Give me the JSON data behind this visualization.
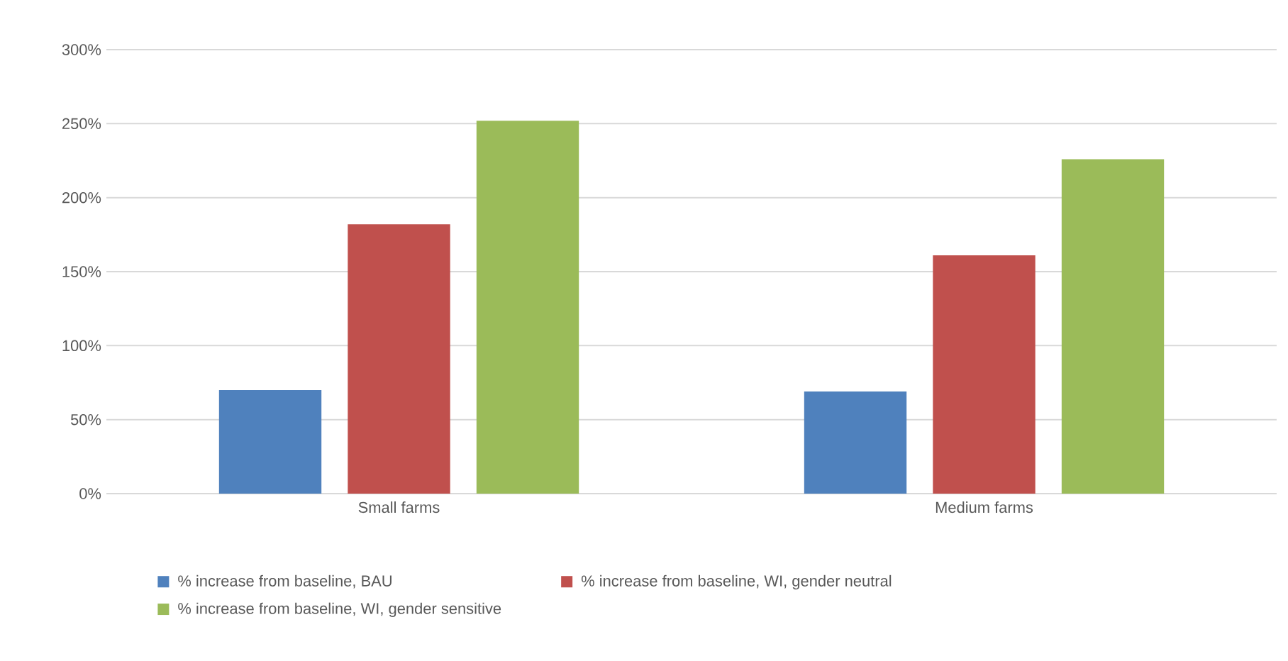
{
  "chart_data": {
    "type": "bar",
    "categories": [
      "Small farms",
      "Medium farms"
    ],
    "series": [
      {
        "name": "% increase from baseline, BAU",
        "color": "#4f81bd",
        "values": [
          70,
          69
        ]
      },
      {
        "name": "% increase from baseline, WI, gender neutral",
        "color": "#c0504d",
        "values": [
          182,
          161
        ]
      },
      {
        "name": "% increase from baseline, WI, gender sensitive",
        "color": "#9bbb59",
        "values": [
          252,
          226
        ]
      }
    ],
    "ylim": [
      0,
      300
    ],
    "yticks": [
      {
        "value": 0,
        "label": "0%"
      },
      {
        "value": 50,
        "label": "50%"
      },
      {
        "value": 100,
        "label": "100%"
      },
      {
        "value": 150,
        "label": "150%"
      },
      {
        "value": 200,
        "label": "200%"
      },
      {
        "value": 250,
        "label": "250%"
      },
      {
        "value": 300,
        "label": "300%"
      }
    ],
    "grid": "y",
    "legend": "bottom"
  }
}
